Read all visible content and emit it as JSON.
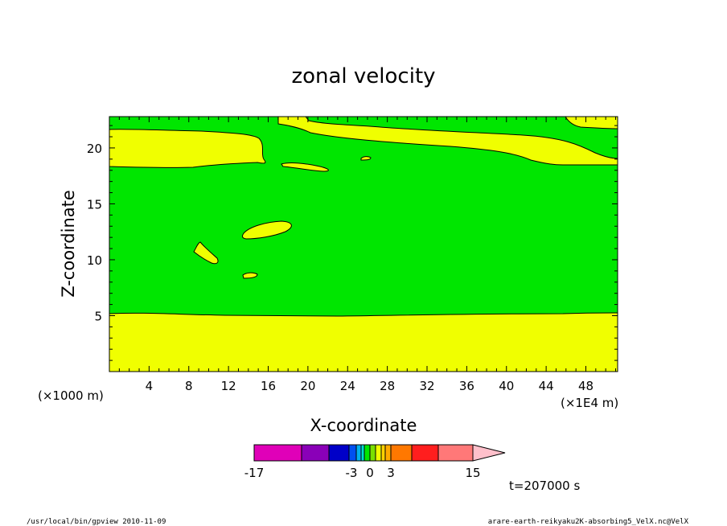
{
  "chart_data": {
    "type": "contour",
    "title": "zonal velocity",
    "xlabel": "X-coordinate",
    "ylabel": "Z-coordinate",
    "x_unit_left": "(×1000 m)",
    "x_unit_right": "(×1E4 m)",
    "x_ticks": [
      4,
      8,
      12,
      16,
      20,
      24,
      28,
      32,
      36,
      40,
      44,
      48
    ],
    "y_ticks": [
      5,
      10,
      15,
      20
    ],
    "xlim": [
      0,
      51.2
    ],
    "ylim": [
      0,
      22.8
    ],
    "regions": [
      {
        "color": "#00e600",
        "range": "0 to 3",
        "description": "background"
      },
      {
        "color": "#f0ff00",
        "range": "3 to 4.5",
        "description": "lower band z<5.3, upper band z~18.5-21.8, small patches"
      }
    ],
    "colorbar": {
      "tick_labels": [
        "-17",
        "-3",
        "0",
        "3",
        "15"
      ],
      "levels": [
        -17,
        -12,
        -9,
        -7,
        -5,
        -3,
        -2,
        -1,
        0,
        1,
        2,
        3,
        4.5,
        8.5,
        12,
        15
      ],
      "colors": [
        "#e000b8",
        "#8a00b8",
        "#0000c8",
        "#0050f0",
        "#00b0f0",
        "#00e0d0",
        "#00e600",
        "#7ae000",
        "#f0ff00",
        "#ffd200",
        "#ffaa00",
        "#ff7800",
        "#ff1e1e",
        "#ff7878"
      ],
      "extend_color": "#ffc0cb"
    },
    "time_label": "t=207000 s"
  },
  "footer": {
    "left": "/usr/local/bin/gpview   2010-11-09",
    "right": "arare-earth-reikyaku2K-absorbing5_VelX.nc@VelX"
  },
  "colors": {
    "green": "#00e600",
    "yellow": "#f0ff00",
    "axis": "#000000"
  }
}
